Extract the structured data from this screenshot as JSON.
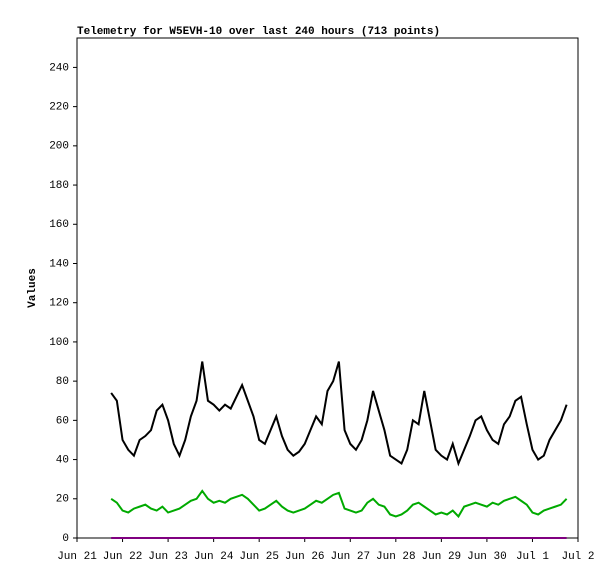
{
  "chart_data": {
    "type": "line",
    "title": "Telemetry for W5EVH-10 over last 240 hours (713 points)",
    "y_label": "Values",
    "xlim": [
      0,
      11
    ],
    "xticks": [
      {
        "value": 0,
        "label": "Jun 21"
      },
      {
        "value": 1,
        "label": "Jun 22"
      },
      {
        "value": 2,
        "label": "Jun 23"
      },
      {
        "value": 3,
        "label": "Jun 24"
      },
      {
        "value": 4,
        "label": "Jun 25"
      },
      {
        "value": 5,
        "label": "Jun 26"
      },
      {
        "value": 6,
        "label": "Jun 27"
      },
      {
        "value": 7,
        "label": "Jun 28"
      },
      {
        "value": 8,
        "label": "Jun 29"
      },
      {
        "value": 9,
        "label": "Jun 30"
      },
      {
        "value": 10,
        "label": "Jul 1"
      },
      {
        "value": 11,
        "label": "Jul 2"
      }
    ],
    "ylim": [
      0,
      255
    ],
    "yticks": [
      0,
      20,
      40,
      60,
      80,
      100,
      120,
      140,
      160,
      180,
      200,
      220,
      240
    ],
    "x": [
      0.75,
      0.875,
      1,
      1.125,
      1.25,
      1.375,
      1.5,
      1.625,
      1.75,
      1.875,
      2,
      2.125,
      2.25,
      2.375,
      2.5,
      2.625,
      2.75,
      2.875,
      3,
      3.125,
      3.25,
      3.375,
      3.5,
      3.625,
      3.75,
      3.875,
      4,
      4.125,
      4.25,
      4.375,
      4.5,
      4.625,
      4.75,
      4.875,
      5,
      5.125,
      5.25,
      5.375,
      5.5,
      5.625,
      5.75,
      5.875,
      6,
      6.125,
      6.25,
      6.375,
      6.5,
      6.625,
      6.75,
      6.875,
      7,
      7.125,
      7.25,
      7.375,
      7.5,
      7.625,
      7.75,
      7.875,
      8,
      8.125,
      8.25,
      8.375,
      8.5,
      8.625,
      8.75,
      8.875,
      9,
      9.125,
      9.25,
      9.375,
      9.5,
      9.625,
      9.75,
      9.875,
      10,
      10.125,
      10.25,
      10.375,
      10.5,
      10.625,
      10.75
    ],
    "series": [
      {
        "color": "#000000",
        "values": [
          74,
          70,
          50,
          45,
          42,
          50,
          52,
          55,
          65,
          68,
          60,
          48,
          42,
          50,
          62,
          70,
          90,
          70,
          68,
          65,
          68,
          66,
          72,
          78,
          70,
          62,
          50,
          48,
          55,
          62,
          52,
          45,
          42,
          44,
          48,
          55,
          62,
          58,
          75,
          80,
          90,
          55,
          48,
          45,
          50,
          60,
          75,
          65,
          55,
          42,
          40,
          38,
          45,
          60,
          58,
          75,
          60,
          45,
          42,
          40,
          48,
          38,
          45,
          52,
          60,
          62,
          55,
          50,
          48,
          58,
          62,
          70,
          72,
          58,
          45,
          40,
          42,
          50,
          55,
          60,
          68
        ]
      },
      {
        "color": "#00aa00",
        "values": [
          20,
          18,
          14,
          13,
          15,
          16,
          17,
          15,
          14,
          16,
          13,
          14,
          15,
          17,
          19,
          20,
          24,
          20,
          18,
          19,
          18,
          20,
          21,
          22,
          20,
          17,
          14,
          15,
          17,
          19,
          16,
          14,
          13,
          14,
          15,
          17,
          19,
          18,
          20,
          22,
          23,
          15,
          14,
          13,
          14,
          18,
          20,
          17,
          16,
          12,
          11,
          12,
          14,
          17,
          18,
          16,
          14,
          12,
          13,
          12,
          14,
          11,
          16,
          17,
          18,
          17,
          16,
          18,
          17,
          19,
          20,
          21,
          19,
          17,
          13,
          12,
          14,
          15,
          16,
          17,
          20
        ]
      },
      {
        "color": "#800080",
        "values": [
          0,
          0,
          0,
          0,
          0,
          0,
          0,
          0,
          0,
          0,
          0,
          0,
          0,
          0,
          0,
          0,
          0,
          0,
          0,
          0,
          0,
          0,
          0,
          0,
          0,
          0,
          0,
          0,
          0,
          0,
          0,
          0,
          0,
          0,
          0,
          0,
          0,
          0,
          0,
          0,
          0,
          0,
          0,
          0,
          0,
          0,
          0,
          0,
          0,
          0,
          0,
          0,
          0,
          0,
          0,
          0,
          0,
          0,
          0,
          0,
          0,
          0,
          0,
          0,
          0,
          0,
          0,
          0,
          0,
          0,
          0,
          0,
          0,
          0,
          0,
          0,
          0,
          0,
          0,
          0,
          0
        ]
      }
    ]
  }
}
